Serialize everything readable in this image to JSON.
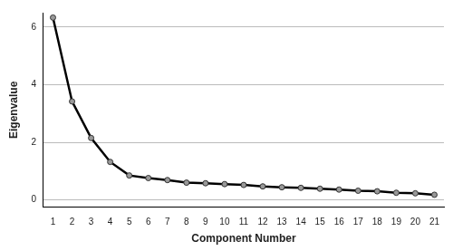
{
  "chart_data": {
    "type": "line",
    "x_label": "Component Number",
    "y_label": "Eigenvalue",
    "categories": [
      "1",
      "2",
      "3",
      "4",
      "5",
      "6",
      "7",
      "8",
      "9",
      "10",
      "11",
      "12",
      "13",
      "14",
      "15",
      "16",
      "17",
      "18",
      "19",
      "20",
      "21"
    ],
    "values": [
      6.33,
      3.42,
      2.15,
      1.32,
      0.85,
      0.76,
      0.69,
      0.6,
      0.58,
      0.55,
      0.52,
      0.47,
      0.44,
      0.42,
      0.39,
      0.36,
      0.32,
      0.3,
      0.25,
      0.23,
      0.18
    ],
    "color": "#000000",
    "marker": "circle",
    "ylim": [
      -0.25,
      6.5
    ],
    "yticks": [
      0,
      2,
      4,
      6
    ],
    "grid": true
  }
}
